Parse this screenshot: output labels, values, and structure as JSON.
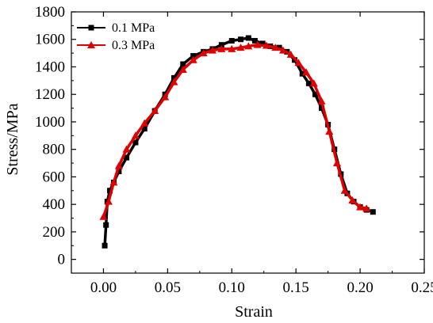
{
  "chart_data": {
    "type": "line",
    "xlabel": "Strain",
    "ylabel": "Stress/MPa",
    "xlim": [
      -0.025,
      0.25
    ],
    "ylim": [
      -100,
      1800
    ],
    "xticks": [
      "0.00",
      "0.05",
      "0.10",
      "0.15",
      "0.20",
      "0.25"
    ],
    "yticks": [
      "0",
      "200",
      "400",
      "600",
      "800",
      "1000",
      "1200",
      "1400",
      "1600",
      "1800"
    ],
    "grid": false,
    "legend_position": "top-left",
    "series": [
      {
        "name": "0.1 MPa",
        "color": "#000000",
        "marker": "square",
        "x": [
          0.001,
          0.002,
          0.003,
          0.005,
          0.008,
          0.012,
          0.018,
          0.025,
          0.032,
          0.04,
          0.048,
          0.055,
          0.062,
          0.07,
          0.078,
          0.085,
          0.092,
          0.1,
          0.107,
          0.113,
          0.118,
          0.124,
          0.13,
          0.137,
          0.143,
          0.149,
          0.155,
          0.16,
          0.165,
          0.17,
          0.175,
          0.18,
          0.185,
          0.19,
          0.195,
          0.2,
          0.205,
          0.21
        ],
        "y": [
          100,
          250,
          420,
          500,
          560,
          640,
          740,
          850,
          950,
          1080,
          1200,
          1320,
          1420,
          1480,
          1510,
          1530,
          1560,
          1590,
          1600,
          1610,
          1590,
          1570,
          1550,
          1540,
          1510,
          1450,
          1350,
          1280,
          1200,
          1100,
          980,
          800,
          620,
          480,
          420,
          380,
          360,
          345
        ]
      },
      {
        "name": "0.3 MPa",
        "color": "#e00000",
        "marker": "triangle",
        "x": [
          0.0,
          0.004,
          0.008,
          0.012,
          0.018,
          0.025,
          0.032,
          0.04,
          0.048,
          0.055,
          0.062,
          0.07,
          0.078,
          0.085,
          0.092,
          0.1,
          0.107,
          0.113,
          0.12,
          0.127,
          0.134,
          0.14,
          0.146,
          0.152,
          0.158,
          0.164,
          0.17,
          0.176,
          0.182,
          0.188,
          0.194,
          0.2,
          0.205
        ],
        "y": [
          310,
          420,
          560,
          680,
          800,
          900,
          990,
          1080,
          1180,
          1290,
          1380,
          1450,
          1500,
          1520,
          1530,
          1530,
          1540,
          1550,
          1560,
          1555,
          1540,
          1520,
          1490,
          1430,
          1360,
          1280,
          1150,
          930,
          700,
          500,
          430,
          380,
          370
        ]
      }
    ]
  }
}
